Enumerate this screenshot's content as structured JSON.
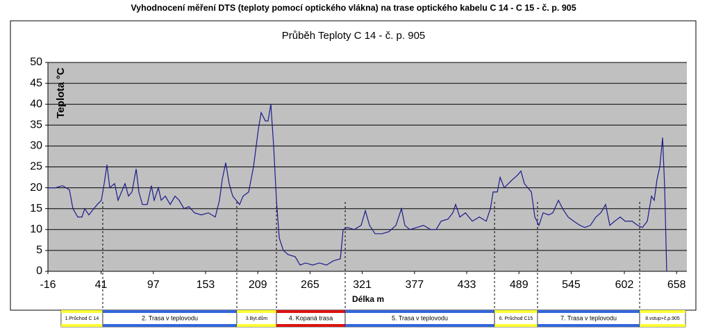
{
  "chart_data": {
    "type": "line",
    "page_title": "Vyhodnocení měření DTS (teploty pomocí optického vlákna) na trase optického kabelu C 14 - C 15  - č. p. 905",
    "title": "Průběh Teploty C 14 -  č. p. 905",
    "x_label": "Délka m",
    "y_label": "Teplota °C",
    "xlim": [
      -16,
      669
    ],
    "ylim": [
      0,
      50
    ],
    "xticks": [
      -16,
      41,
      97,
      153,
      209,
      265,
      321,
      377,
      433,
      489,
      545,
      602,
      658
    ],
    "yticks": [
      0,
      5,
      10,
      15,
      20,
      25,
      30,
      35,
      40,
      45,
      50
    ],
    "grid": true,
    "plot_background": "#c0c0c0",
    "series": [
      {
        "name": "Teplota",
        "color": "#1a1a8c",
        "x": [
          -16,
          -7.8,
          -0.4,
          7.1,
          10.8,
          16,
          20.5,
          23.5,
          27.9,
          33.1,
          36.9,
          41.3,
          44.3,
          47.3,
          50.3,
          55.5,
          59.2,
          62.9,
          66.7,
          70.4,
          74.1,
          78.6,
          81.5,
          85.3,
          90.5,
          94.9,
          97.9,
          102.4,
          105.4,
          109.8,
          115.1,
          120.3,
          124.7,
          129.9,
          135.2,
          141.1,
          148.5,
          156,
          163.4,
          167.9,
          170.9,
          174.6,
          178.3,
          182.1,
          185.8,
          189.5,
          193.2,
          199.2,
          204.4,
          209.6,
          212.6,
          217.1,
          220,
          223,
          226,
          229,
          232,
          236.4,
          241.6,
          249.1,
          254.3,
          260.3,
          267.7,
          275.1,
          282.6,
          290,
          297.5,
          300.5,
          305,
          312.4,
          319.8,
          324.3,
          328.8,
          334.7,
          342.2,
          349.6,
          357.1,
          363,
          366.7,
          372,
          379.4,
          386.8,
          394.3,
          400.2,
          405.5,
          412.9,
          418.1,
          421.1,
          425.6,
          431.6,
          439,
          446.5,
          453.9,
          458.4,
          461.3,
          465.8,
          468.8,
          473.2,
          477.7,
          482.2,
          487.4,
          491.1,
          494.8,
          498.5,
          502.3,
          506,
          510.4,
          514.9,
          520.9,
          525.3,
          531.3,
          535.8,
          541.7,
          547.7,
          554.4,
          559.6,
          565.5,
          571.5,
          576.7,
          581.9,
          586.4,
          591.6,
          597.6,
          602.8,
          610.2,
          616.2,
          621.4,
          626.6,
          631.1,
          634,
          637,
          640,
          643,
          645.2,
          647.4
        ],
        "values": [
          20,
          20,
          20.5,
          19.5,
          15,
          13,
          13,
          15,
          13.5,
          15,
          16,
          17,
          21,
          25.5,
          20,
          21,
          17,
          19,
          21,
          18,
          19,
          24.5,
          19,
          16,
          16,
          20.5,
          17,
          20,
          17,
          18,
          16,
          18,
          17,
          15,
          15.5,
          14,
          13.5,
          14,
          13,
          17,
          22,
          26,
          21,
          18,
          17,
          16,
          18,
          19,
          25,
          34,
          38,
          36,
          36,
          40,
          30,
          17,
          8,
          5,
          4,
          3.5,
          1.5,
          2,
          1.5,
          2,
          1.5,
          2.5,
          3,
          10,
          10.5,
          10,
          11,
          14.5,
          11,
          9,
          9,
          9.5,
          11,
          15,
          11,
          10,
          10.5,
          11,
          10,
          10,
          12,
          12.5,
          14,
          16,
          13,
          14,
          12,
          13,
          12,
          15,
          19,
          19,
          22.5,
          20,
          21,
          22,
          23,
          24,
          21,
          20,
          19,
          13,
          11,
          14,
          13.5,
          14,
          17,
          15,
          13,
          12,
          11,
          10.5,
          11,
          13,
          14,
          16,
          11,
          12,
          13,
          12,
          12,
          11,
          10.5,
          12,
          18,
          17,
          22,
          25,
          32,
          20,
          0
        ]
      }
    ],
    "sections": [
      {
        "label": "1.Průchod C 14",
        "start": -1.9,
        "end": 42.8,
        "color": "#ffff33"
      },
      {
        "label": "2. Trasa v teplovodu",
        "start": 42.8,
        "end": 186.5,
        "color": "#3366dd"
      },
      {
        "label": "3.Byt.dům",
        "start": 186.5,
        "end": 229,
        "color": "#ffff33"
      },
      {
        "label": "4. Kopaná trasa",
        "start": 229,
        "end": 302.7,
        "color": "#dd1111"
      },
      {
        "label": "5. Trasa v teplovodu",
        "start": 302.7,
        "end": 462.8,
        "color": "#3366dd"
      },
      {
        "label": "6. Průchod C15",
        "start": 462.8,
        "end": 508.9,
        "color": "#ffff33"
      },
      {
        "label": "7. Trasa v teplovodu",
        "start": 508.9,
        "end": 618.4,
        "color": "#3366dd"
      },
      {
        "label": "8.vstup+č.p.905",
        "start": 618.4,
        "end": 667.5,
        "color": "#ffff33"
      }
    ]
  }
}
